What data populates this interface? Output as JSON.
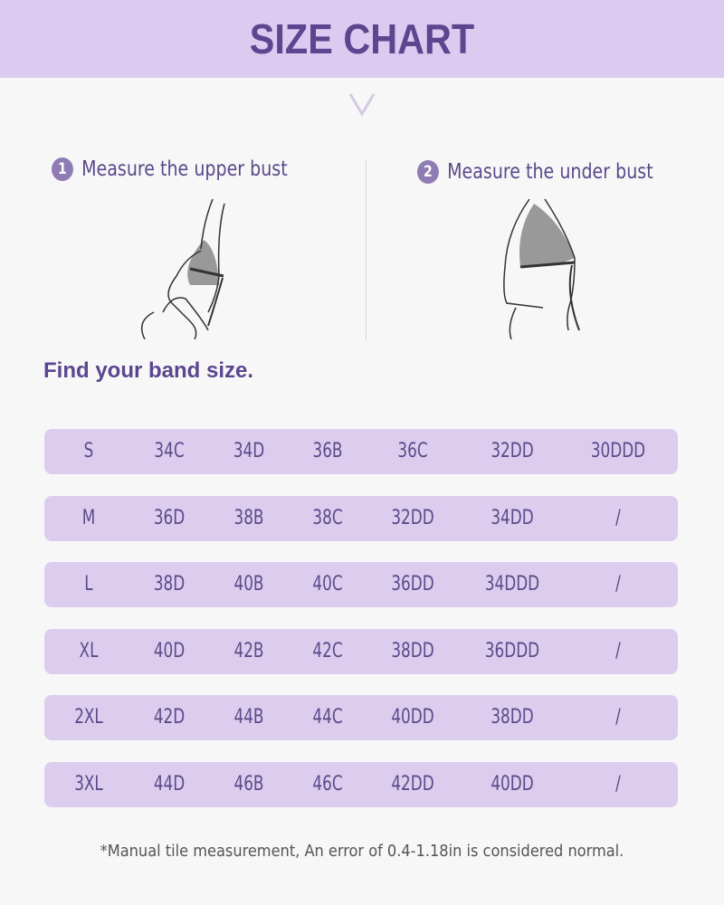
{
  "header": {
    "title": "SIZE CHART"
  },
  "steps": [
    {
      "number": "1",
      "label": "Measure the upper bust"
    },
    {
      "number": "2",
      "label": "Measure the under bust"
    }
  ],
  "band_heading": "Find your band size.",
  "table": {
    "rows": [
      [
        "S",
        "34C",
        "34D",
        "36B",
        "36C",
        "32DD",
        "30DDD"
      ],
      [
        "M",
        "36D",
        "38B",
        "38C",
        "32DD",
        "34DD",
        "/"
      ],
      [
        "L",
        "38D",
        "40B",
        "40C",
        "36DD",
        "34DDD",
        "/"
      ],
      [
        "XL",
        "40D",
        "42B",
        "42C",
        "38DD",
        "36DDD",
        "/"
      ],
      [
        "2XL",
        "42D",
        "44B",
        "44C",
        "40DD",
        "38DD",
        "/"
      ],
      [
        "3XL",
        "44D",
        "46B",
        "46C",
        "42DD",
        "40DD",
        "/"
      ]
    ]
  },
  "note": "*Manual tile measurement, An error of 0.4-1.18in is considered normal.",
  "colors": {
    "header_bg": "#dbcbf0",
    "accent": "#5b468f",
    "row_bg": "#dccdee"
  }
}
